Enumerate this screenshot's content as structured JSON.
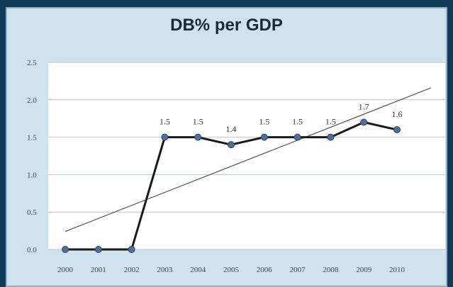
{
  "chart_data": {
    "type": "line",
    "title": "DB% per GDP",
    "xlabel": "",
    "ylabel": "",
    "categories": [
      "2000",
      "2001",
      "2002",
      "2003",
      "2004",
      "2005",
      "2006",
      "2007",
      "2008",
      "2009",
      "2010"
    ],
    "series": [
      {
        "values": [
          0.0,
          0.0,
          0.0,
          1.5,
          1.5,
          1.4,
          1.5,
          1.5,
          1.5,
          1.7,
          1.6
        ],
        "data_labels": [
          "",
          "",
          "",
          "1.5",
          "1.5",
          "1.4",
          "1.5",
          "1.5",
          "1.5",
          "1.7",
          "1.6"
        ],
        "color": "#1a1a1a",
        "marker_color": "#4f6f9a"
      }
    ],
    "trendline": {
      "type": "linear",
      "start": 0.24,
      "end": 2.16,
      "color": "#555555"
    },
    "ylim": [
      0,
      2.5
    ],
    "yticks": [
      "0.0",
      "0.5",
      "1.0",
      "1.5",
      "2.0",
      "2.5"
    ],
    "grid": true,
    "legend": "none"
  },
  "colors": {
    "outer_background": "#0f3a56",
    "panel_background": "#cfe3ee",
    "plot_background": "#ffffff",
    "gridline": "#b9c4cc"
  }
}
